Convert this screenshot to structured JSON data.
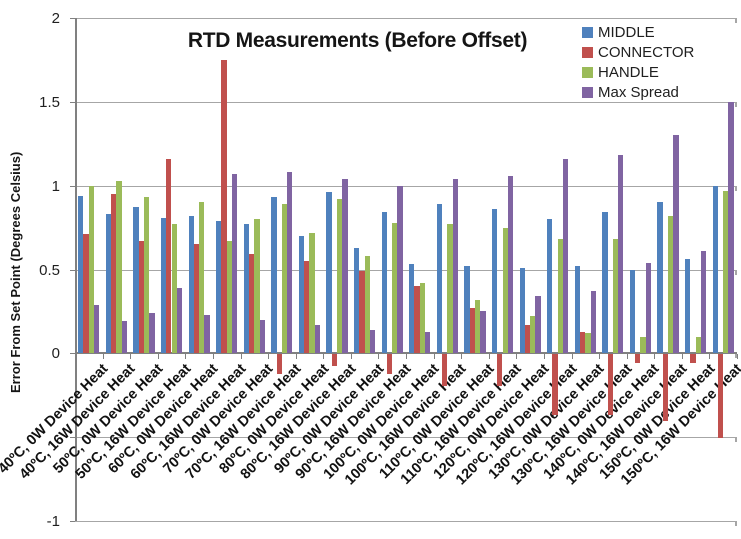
{
  "title": "RTD Measurements (Before Offset)",
  "y_axis": {
    "title": "Error From Set Point (Degrees Celsius)",
    "min": -1,
    "max": 2,
    "gridline_step": 0.5,
    "tick_labels": [
      {
        "v": 2,
        "label": "2"
      },
      {
        "v": 1.5,
        "label": "1.5"
      },
      {
        "v": 1,
        "label": "1"
      },
      {
        "v": 0.5,
        "label": "0.5"
      },
      {
        "v": 0,
        "label": "0"
      },
      {
        "v": -1,
        "label": "-1"
      }
    ]
  },
  "legend": [
    "MIDDLE",
    "CONNECTOR",
    "HANDLE",
    "Max Spread"
  ],
  "chart_data": {
    "type": "bar",
    "title": "RTD Measurements (Before Offset)",
    "xlabel": "",
    "ylabel": "Error From Set Point (Degrees Celsius)",
    "ylim": [
      -1,
      2
    ],
    "grid": true,
    "legend_position": "top-right",
    "categories": [
      "40ºC, 0W Device Heat",
      "40ºC, 16W Device Heat",
      "50ºC, 0W Device Heat",
      "50ºC, 16W Device Heat",
      "60ºC, 0W Device Heat",
      "60ºC, 16W Device Heat",
      "70ºC, 0W Device Heat",
      "70ºC, 16W Device Heat",
      "80ºC, 0W Device Heat",
      "80ºC, 16W Device Heat",
      "90ºC, 0W Device Heat",
      "90ºC, 16W Device Heat",
      "100ºC, 0W Device Heat",
      "100ºC, 16W Device Heat",
      "110ºC, 0W Device Heat",
      "110ºC, 16W Device Heat",
      "120ºC, 0W Device Heat",
      "120ºC, 16W Device Heat",
      "130ºC, 0W Device Heat",
      "130ºC, 16W Device Heat",
      "140ºC, 0W Device Heat",
      "140ºC, 16W Device Heat",
      "150ºC, 0W Device Heat",
      "150ºC, 16W Device Heat"
    ],
    "series": [
      {
        "name": "MIDDLE",
        "color": "#4F81BD",
        "values": [
          0.94,
          0.83,
          0.87,
          0.81,
          0.82,
          0.79,
          0.77,
          0.93,
          0.7,
          0.96,
          0.63,
          0.84,
          0.53,
          0.89,
          0.52,
          0.86,
          0.51,
          0.8,
          0.52,
          0.84,
          0.5,
          0.9,
          0.56,
          1.0
        ]
      },
      {
        "name": "CONNECTOR",
        "color": "#C0504D",
        "values": [
          0.71,
          0.95,
          0.67,
          1.16,
          0.65,
          1.75,
          0.59,
          -0.12,
          0.55,
          -0.07,
          0.49,
          -0.12,
          0.4,
          -0.19,
          0.27,
          -0.19,
          0.17,
          -0.36,
          0.13,
          -0.36,
          -0.05,
          -0.4,
          -0.05,
          -0.5
        ]
      },
      {
        "name": "HANDLE",
        "color": "#9BBB59",
        "values": [
          1.0,
          1.03,
          0.93,
          0.77,
          0.9,
          0.67,
          0.8,
          0.89,
          0.72,
          0.92,
          0.58,
          0.78,
          0.42,
          0.77,
          0.32,
          0.75,
          0.22,
          0.68,
          0.12,
          0.68,
          0.1,
          0.82,
          0.1,
          0.97
        ]
      },
      {
        "name": "Max Spread",
        "color": "#8064A2",
        "values": [
          0.29,
          0.19,
          0.24,
          0.39,
          0.23,
          1.07,
          0.2,
          1.08,
          0.17,
          1.04,
          0.14,
          1.0,
          0.13,
          1.04,
          0.25,
          1.06,
          0.34,
          1.16,
          0.37,
          1.18,
          0.54,
          1.3,
          0.61,
          1.5
        ]
      }
    ]
  }
}
